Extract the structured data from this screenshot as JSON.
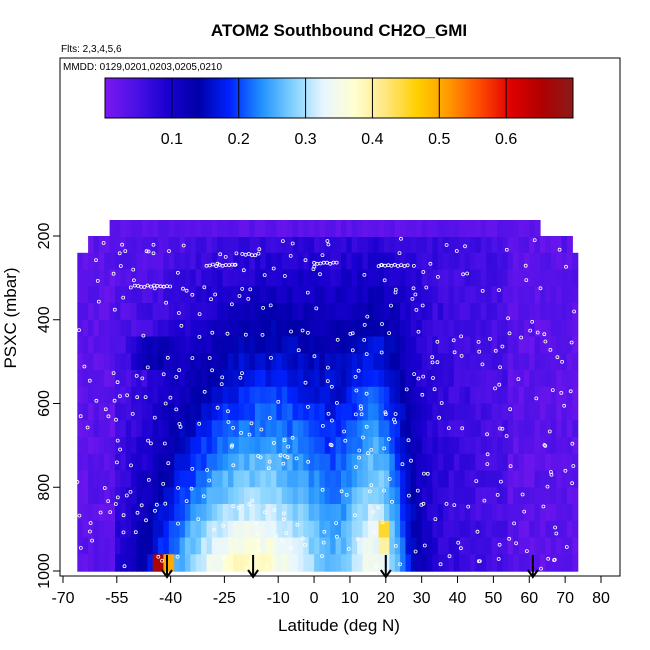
{
  "chart_data": {
    "type": "heatmap",
    "title": "ATOM2 Southbound CH2O_GMI",
    "flights_label": "Flts: 2,3,4,5,6",
    "dates_label": "MMDD: 0129,0201,0203,0205,0210",
    "xlabel": "Latitude (deg N)",
    "ylabel": "PSXC (mbar)",
    "xlim": [
      -70,
      85
    ],
    "ylim": [
      1000,
      200
    ],
    "x_ticks": [
      -70,
      -55,
      -40,
      -25,
      -10,
      0,
      10,
      20,
      30,
      40,
      50,
      60,
      70,
      80
    ],
    "y_ticks": [
      200,
      400,
      600,
      800,
      1000
    ],
    "colorbar": {
      "range": [
        0.0,
        0.7
      ],
      "ticks": [
        0.1,
        0.2,
        0.3,
        0.4,
        0.5,
        0.6
      ],
      "colors": [
        "#7b18f0",
        "#4a10e6",
        "#1a00d0",
        "#0000a8",
        "#0022ff",
        "#1e90ff",
        "#7fd0ff",
        "#e8f6ff",
        "#ffffd0",
        "#ffe680",
        "#ffd000",
        "#ff9a00",
        "#ff4a00",
        "#e00000",
        "#b00000",
        "#8b1a1a"
      ]
    },
    "arrows_lat": [
      -41,
      -17,
      20,
      61
    ],
    "pressure_levels": [
      220,
      260,
      300,
      340,
      380,
      420,
      460,
      500,
      540,
      580,
      620,
      660,
      700,
      740,
      780,
      820,
      860,
      900,
      940,
      980
    ],
    "hotspots": [
      {
        "lat": -43,
        "p": 980,
        "value": 0.66
      },
      {
        "lat": -40,
        "p": 980,
        "value": 0.5
      },
      {
        "lat": 20,
        "p": 900,
        "value": 0.45
      },
      {
        "lat": 20,
        "p": 940,
        "value": 0.4
      }
    ]
  }
}
